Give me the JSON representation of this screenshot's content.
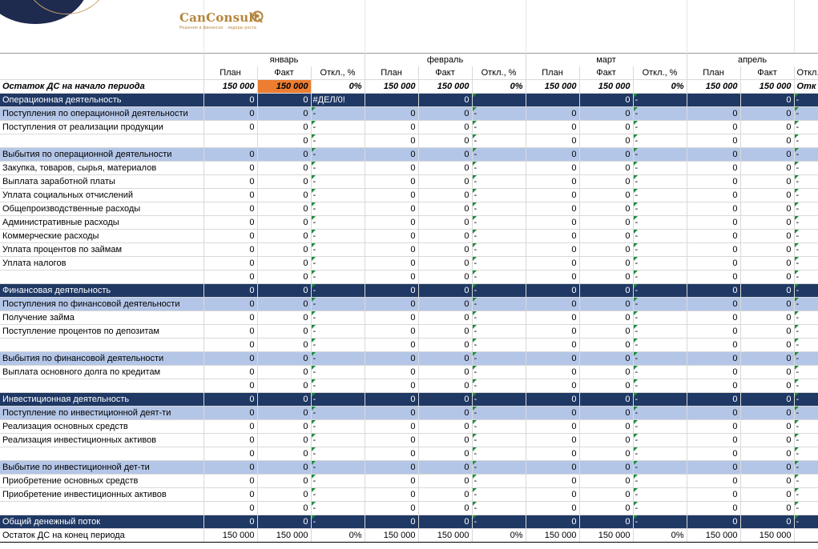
{
  "logo": {
    "name": "CanConsult",
    "tagline": "Решения в финансах · лидеры роста"
  },
  "colors": {
    "section": "#1f3864",
    "group": "#b4c6e7",
    "highlight": "#ed7d31",
    "triangle": "#1e8c3a"
  },
  "months": [
    "январь",
    "февраль",
    "март",
    "апрель"
  ],
  "subheaders": [
    "План",
    "Факт",
    "Откл., %"
  ],
  "rows": [
    {
      "type": "balance",
      "label": "Остаток ДС на начало периода",
      "cells": [
        "150 000",
        "150 000",
        "0%",
        "150 000",
        "150 000",
        "0%",
        "150 000",
        "150 000",
        "0%",
        "150 000",
        "150 000",
        "Отк"
      ]
    },
    {
      "type": "section",
      "label": "Операционная деятельность",
      "cells": [
        "0",
        "0",
        "#ДЕЛ/0!",
        "",
        "0",
        "",
        "",
        "0",
        "-",
        "",
        "0",
        "-"
      ]
    },
    {
      "type": "group",
      "label": "Поступления по операционной деятельности",
      "cells": [
        "0",
        "0",
        "-",
        "0",
        "0",
        "-",
        "0",
        "0",
        "-",
        "0",
        "0",
        "-"
      ]
    },
    {
      "type": "item",
      "label": "Поступления от реализации продукции",
      "cells": [
        "0",
        "0",
        "-",
        "0",
        "0",
        "-",
        "0",
        "0",
        "-",
        "0",
        "0",
        "-"
      ]
    },
    {
      "type": "item",
      "label": "",
      "cells": [
        "",
        "0",
        "-",
        "0",
        "0",
        "-",
        "0",
        "0",
        "-",
        "0",
        "0",
        "-"
      ]
    },
    {
      "type": "group",
      "label": "Выбытия по операционной деятельности",
      "cells": [
        "0",
        "0",
        "-",
        "0",
        "0",
        "-",
        "0",
        "0",
        "-",
        "0",
        "0",
        "-"
      ]
    },
    {
      "type": "item",
      "label": "Закупка, товаров, сырья, материалов",
      "cells": [
        "0",
        "0",
        "-",
        "0",
        "0",
        "-",
        "0",
        "0",
        "-",
        "0",
        "0",
        "-"
      ]
    },
    {
      "type": "item",
      "label": "Выплата заработной платы",
      "cells": [
        "0",
        "0",
        "-",
        "0",
        "0",
        "-",
        "0",
        "0",
        "-",
        "0",
        "0",
        "-"
      ]
    },
    {
      "type": "item",
      "label": "Уплата социальных отчислений",
      "cells": [
        "0",
        "0",
        "-",
        "0",
        "0",
        "-",
        "0",
        "0",
        "-",
        "0",
        "0",
        "-"
      ]
    },
    {
      "type": "item",
      "label": "Общепроизводственные расходы",
      "cells": [
        "0",
        "0",
        "-",
        "0",
        "0",
        "-",
        "0",
        "0",
        "-",
        "0",
        "0",
        "-"
      ]
    },
    {
      "type": "item",
      "label": "Административные расходы",
      "cells": [
        "0",
        "0",
        "-",
        "0",
        "0",
        "-",
        "0",
        "0",
        "-",
        "0",
        "0",
        "-"
      ]
    },
    {
      "type": "item",
      "label": "Коммерческие расходы",
      "cells": [
        "0",
        "0",
        "-",
        "0",
        "0",
        "-",
        "0",
        "0",
        "-",
        "0",
        "0",
        "-"
      ]
    },
    {
      "type": "item",
      "label": "Уплата процентов по займам",
      "cells": [
        "0",
        "0",
        "-",
        "0",
        "0",
        "-",
        "0",
        "0",
        "-",
        "0",
        "0",
        "-"
      ]
    },
    {
      "type": "item",
      "label": "Уплата налогов",
      "cells": [
        "0",
        "0",
        "-",
        "0",
        "0",
        "-",
        "0",
        "0",
        "-",
        "0",
        "0",
        "-"
      ]
    },
    {
      "type": "item",
      "label": "",
      "cells": [
        "0",
        "0",
        "-",
        "0",
        "0",
        "-",
        "0",
        "0",
        "-",
        "0",
        "0",
        "-"
      ]
    },
    {
      "type": "section",
      "label": "Финансовая деятельность",
      "cells": [
        "0",
        "0",
        "-",
        "0",
        "0",
        "-",
        "0",
        "0",
        "-",
        "0",
        "0",
        "-"
      ]
    },
    {
      "type": "group",
      "label": "Поступления по финансовой деятельности",
      "cells": [
        "0",
        "0",
        "-",
        "0",
        "0",
        "-",
        "0",
        "0",
        "-",
        "0",
        "0",
        "-"
      ]
    },
    {
      "type": "item",
      "label": "Получение займа",
      "cells": [
        "0",
        "0",
        "-",
        "0",
        "0",
        "-",
        "0",
        "0",
        "-",
        "0",
        "0",
        "-"
      ]
    },
    {
      "type": "item",
      "label": "Поступление процентов по депозитам",
      "cells": [
        "0",
        "0",
        "-",
        "0",
        "0",
        "-",
        "0",
        "0",
        "-",
        "0",
        "0",
        "-"
      ]
    },
    {
      "type": "item",
      "label": "",
      "cells": [
        "0",
        "0",
        "-",
        "0",
        "0",
        "-",
        "0",
        "0",
        "-",
        "0",
        "0",
        "-"
      ]
    },
    {
      "type": "group",
      "label": "Выбытия по финансовой деятельности",
      "cells": [
        "0",
        "0",
        "-",
        "0",
        "0",
        "-",
        "0",
        "0",
        "-",
        "0",
        "0",
        "-"
      ]
    },
    {
      "type": "item",
      "label": "Выплата основного долга по  кредитам",
      "cells": [
        "0",
        "0",
        "-",
        "0",
        "0",
        "-",
        "0",
        "0",
        "-",
        "0",
        "0",
        "-"
      ]
    },
    {
      "type": "item",
      "label": "",
      "cells": [
        "0",
        "0",
        "-",
        "0",
        "0",
        "-",
        "0",
        "0",
        "-",
        "0",
        "0",
        "-"
      ]
    },
    {
      "type": "section",
      "label": "Инвестиционная деятельность",
      "cells": [
        "0",
        "0",
        "-",
        "0",
        "0",
        "-",
        "0",
        "0",
        "-",
        "0",
        "0",
        "-"
      ]
    },
    {
      "type": "group",
      "label": "Поступление по инвестиционной деят-ти",
      "cells": [
        "0",
        "0",
        "-",
        "0",
        "0",
        "-",
        "0",
        "0",
        "-",
        "0",
        "0",
        "-"
      ]
    },
    {
      "type": "item",
      "label": "Реализация основных средств",
      "cells": [
        "0",
        "0",
        "-",
        "0",
        "0",
        "-",
        "0",
        "0",
        "-",
        "0",
        "0",
        "-"
      ]
    },
    {
      "type": "item",
      "label": "Реализация инвестиционных активов",
      "cells": [
        "0",
        "0",
        "-",
        "0",
        "0",
        "-",
        "0",
        "0",
        "-",
        "0",
        "0",
        "-"
      ]
    },
    {
      "type": "item",
      "label": "",
      "cells": [
        "0",
        "0",
        "-",
        "0",
        "0",
        "-",
        "0",
        "0",
        "-",
        "0",
        "0",
        "-"
      ]
    },
    {
      "type": "group",
      "label": "Выбытие по инвестиционной дет-ти",
      "cells": [
        "0",
        "0",
        "-",
        "0",
        "0",
        "-",
        "0",
        "0",
        "-",
        "0",
        "0",
        "-"
      ]
    },
    {
      "type": "item",
      "label": "Приобретение основных средств",
      "cells": [
        "0",
        "0",
        "-",
        "0",
        "0",
        "-",
        "0",
        "0",
        "-",
        "0",
        "0",
        "-"
      ]
    },
    {
      "type": "item",
      "label": "Приобретение инвестиционных активов",
      "cells": [
        "0",
        "0",
        "-",
        "0",
        "0",
        "-",
        "0",
        "0",
        "-",
        "0",
        "0",
        "-"
      ]
    },
    {
      "type": "item",
      "label": "",
      "cells": [
        "0",
        "0",
        "-",
        "0",
        "0",
        "-",
        "0",
        "0",
        "-",
        "0",
        "0",
        "-"
      ]
    },
    {
      "type": "section",
      "label": "Общий денежный поток",
      "cells": [
        "0",
        "0",
        "-",
        "0",
        "0",
        "-",
        "0",
        "0",
        "-",
        "0",
        "0",
        "-"
      ]
    },
    {
      "type": "end",
      "label": "Остаток ДС на конец периода",
      "cells": [
        "150 000",
        "150 000",
        "0%",
        "150 000",
        "150 000",
        "0%",
        "150 000",
        "150 000",
        "0%",
        "150 000",
        "150 000",
        ""
      ]
    }
  ]
}
